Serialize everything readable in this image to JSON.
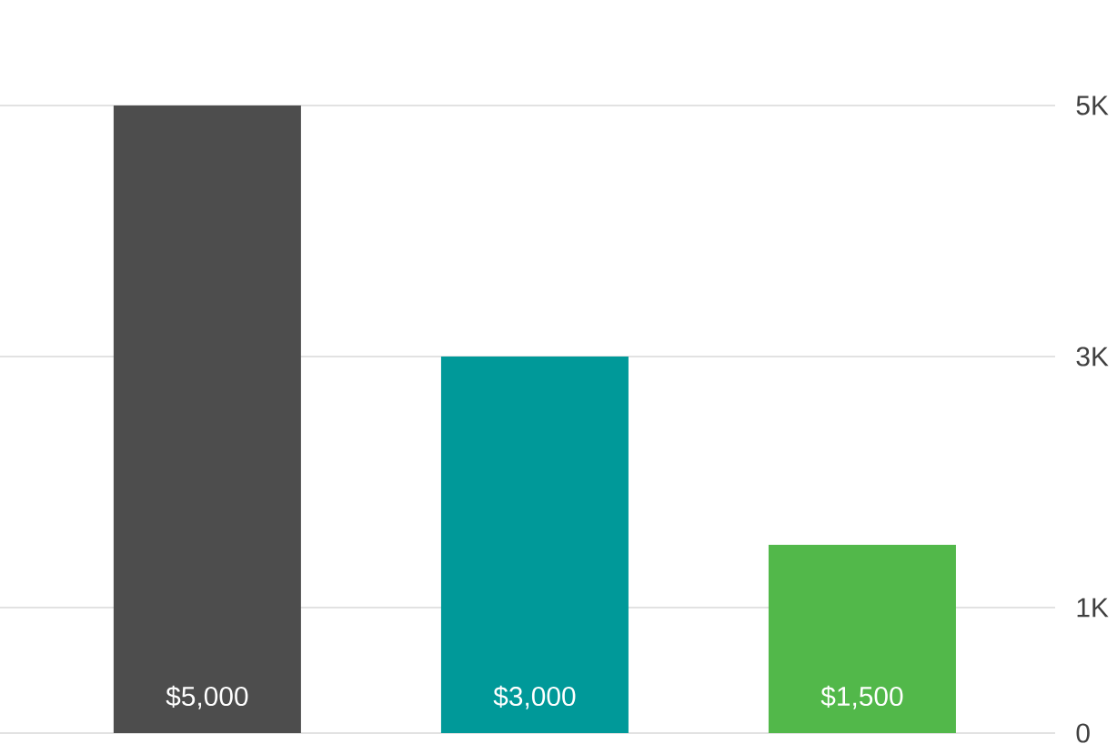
{
  "chart_data": {
    "type": "bar",
    "categories": [
      null,
      null,
      null
    ],
    "values": [
      5000,
      3000,
      1500
    ],
    "colors": [
      "#4d4d4d",
      "#009999",
      "#52b84a"
    ],
    "value_labels": [
      "$5,000",
      "$3,000",
      "$1,500"
    ],
    "ylim": [
      0,
      5000
    ],
    "yticks": [
      0,
      {
        "value": 1000,
        "label": "1K"
      },
      {
        "value": 3000,
        "label": "3K"
      },
      {
        "value": 5000,
        "label": "5K"
      }
    ],
    "grid": "y",
    "tick_labels": "y"
  }
}
